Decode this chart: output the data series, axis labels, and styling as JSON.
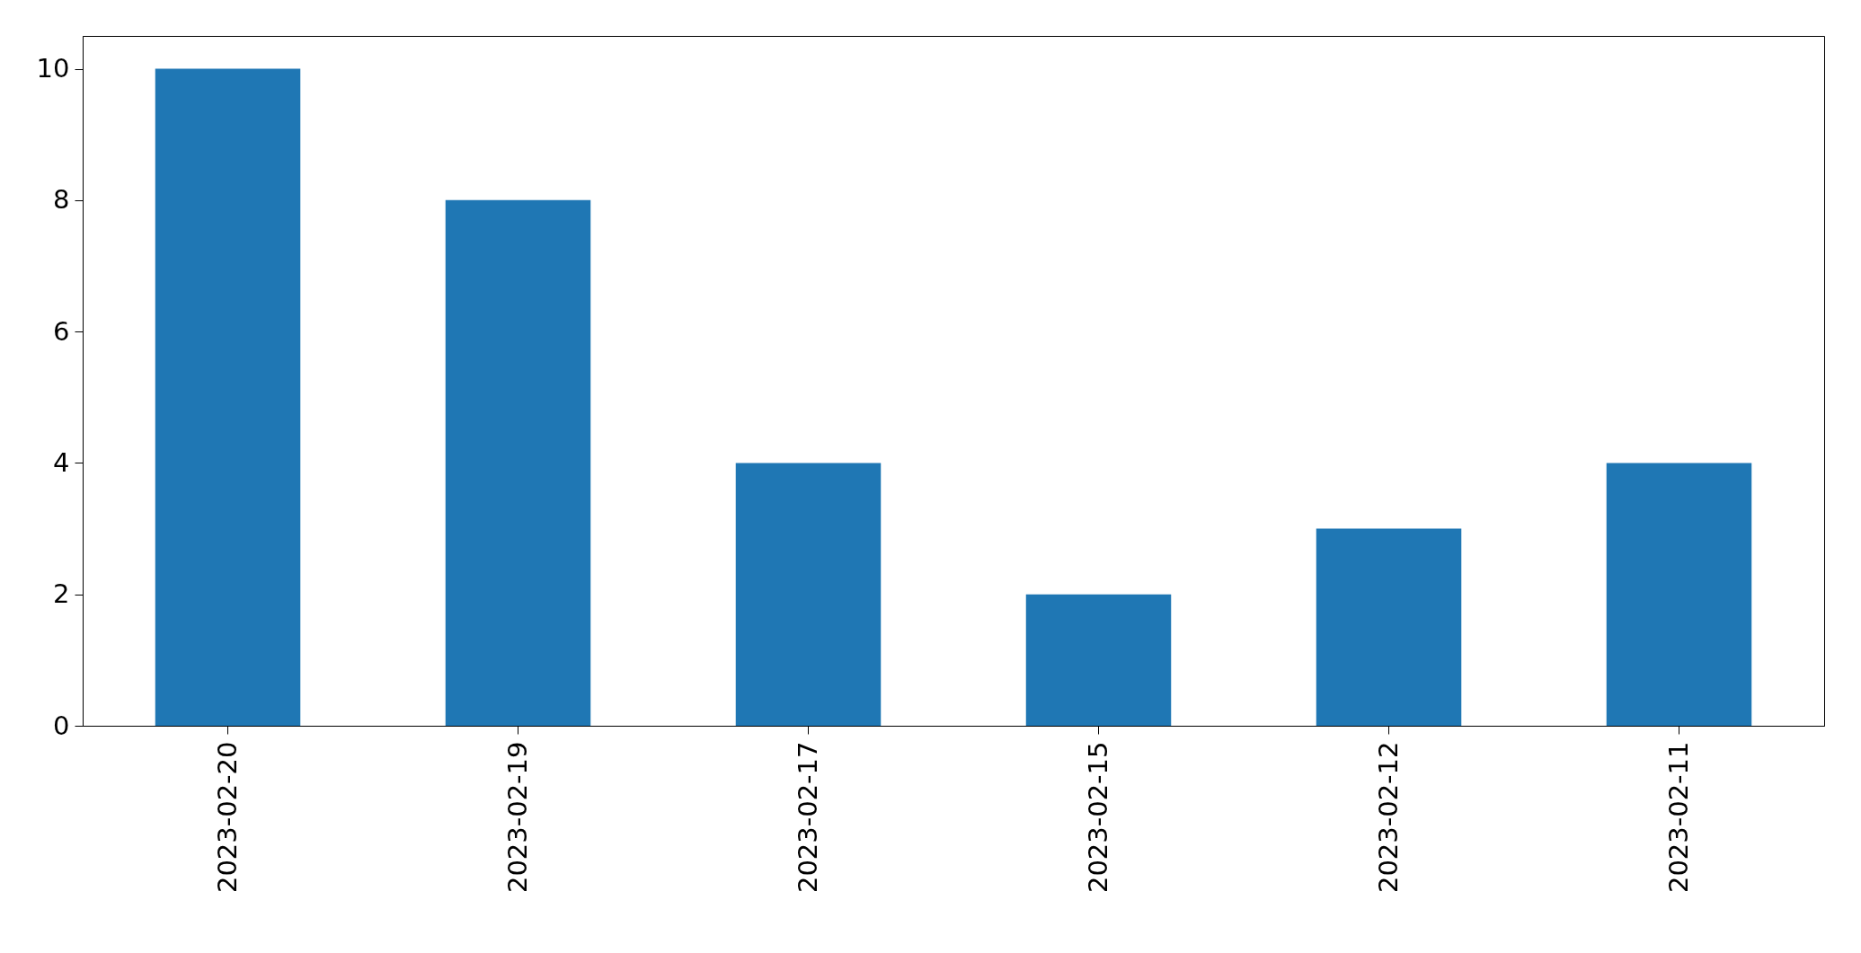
{
  "chart_data": {
    "type": "bar",
    "categories": [
      "2023-02-20",
      "2023-02-19",
      "2023-02-17",
      "2023-02-15",
      "2023-02-12",
      "2023-02-11"
    ],
    "values": [
      10,
      8,
      4,
      2,
      3,
      4
    ],
    "color": "#1f77b4",
    "ylim": [
      0,
      10.5
    ],
    "yticks": [
      0,
      2,
      4,
      6,
      8,
      10
    ]
  }
}
